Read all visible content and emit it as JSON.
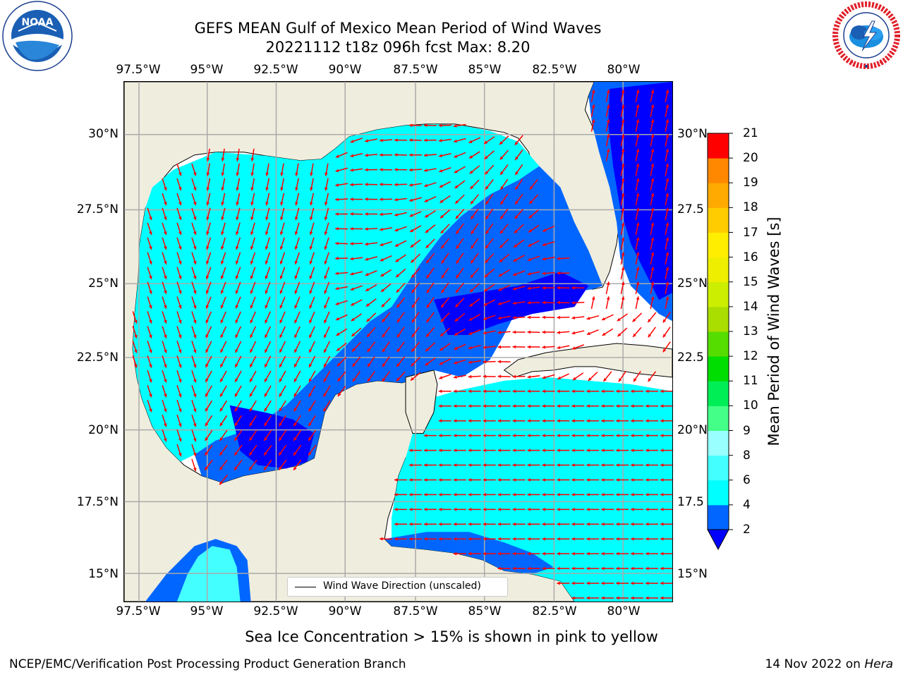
{
  "title": {
    "line1": "GEFS MEAN Gulf of Mexico Mean Period of Wind Waves",
    "line2": "20221112 t18z 096h fcst   Max: 8.20"
  },
  "logos": {
    "left": {
      "name": "NOAA",
      "ring_text": "NATIONAL OCEANIC AND ATMOSPHERIC ADMINISTRATION · U.S. DEPARTMENT OF COMMERCE"
    },
    "right": {
      "name": "NATIONAL WEATHER SERVICE"
    }
  },
  "map": {
    "lon_ticks": [
      "97.5°W",
      "95°W",
      "92.5°W",
      "90°W",
      "87.5°W",
      "85°W",
      "82.5°W",
      "80°W"
    ],
    "lat_ticks_left": [
      "30°N",
      "27.5°N",
      "25°N",
      "22.5°N",
      "20°N",
      "17.5°N",
      "15°N"
    ],
    "lat_ticks_right": [
      "30°N",
      "27.5",
      "25°N",
      "22.5",
      "20°N",
      "17.5",
      "15°N"
    ],
    "extent": {
      "lon": [
        -98,
        -78.3
      ],
      "lat": [
        14,
        31.8
      ]
    },
    "land_color": "#efedde",
    "grid": true,
    "legend": "Wind Wave Direction (unscaled)",
    "arrow_color": "#ff0000"
  },
  "colorbar": {
    "label": "Mean Period of Wind Waves [s]",
    "ticks": [
      "2",
      "4",
      "6",
      "8",
      "9",
      "10",
      "11",
      "12",
      "13",
      "14",
      "15",
      "16",
      "17",
      "18",
      "19",
      "20",
      "21"
    ],
    "colors": [
      "#0066ff",
      "#00ffff",
      "#44ffff",
      "#99ffff",
      "#44ff88",
      "#00ee55",
      "#00dd00",
      "#55dd00",
      "#aadd00",
      "#ccee00",
      "#eeee00",
      "#ffee00",
      "#ffcc00",
      "#ffaa00",
      "#ff8800",
      "#ff5500",
      "#ff2200",
      "#ff0000"
    ],
    "under_color": "#0000ff"
  },
  "footer": {
    "note": "Sea Ice Concentration > 15% is shown in pink to yellow",
    "branch": "NCEP/EMC/Verification Post Processing Product Generation Branch",
    "date": "14 Nov 2022 on",
    "host": "Hera"
  }
}
